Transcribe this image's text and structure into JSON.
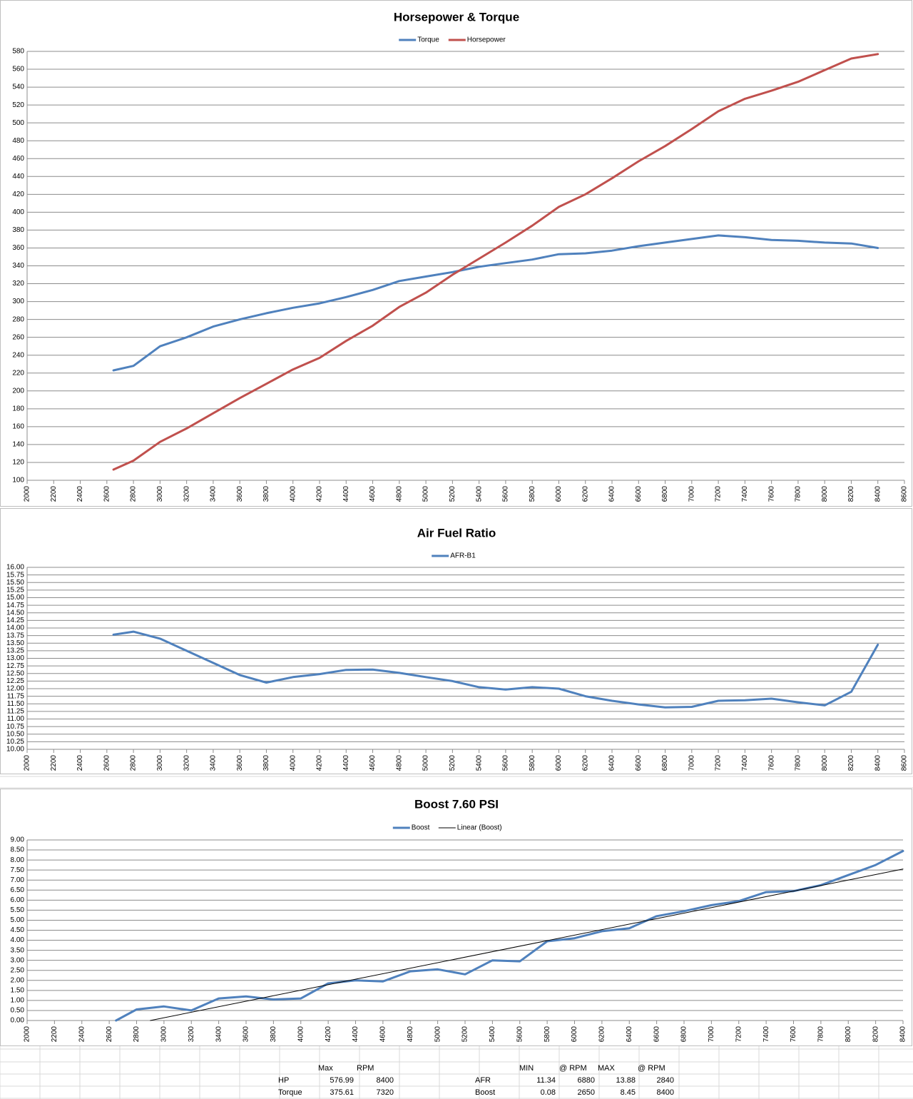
{
  "chart_data": [
    {
      "type": "line",
      "title": "Horsepower & Torque",
      "x": [
        2650,
        2800,
        3000,
        3200,
        3400,
        3600,
        3800,
        4000,
        4200,
        4400,
        4600,
        4800,
        5000,
        5200,
        5400,
        5600,
        5800,
        6000,
        6200,
        6400,
        6600,
        6800,
        7000,
        7200,
        7400,
        7600,
        7800,
        8000,
        8200,
        8400
      ],
      "series": [
        {
          "name": "Torque",
          "color": "#4f81bd",
          "values": [
            223,
            228,
            250,
            260,
            272,
            280,
            287,
            293,
            298,
            305,
            313,
            323,
            328,
            333,
            339,
            343,
            347,
            353,
            354,
            357,
            362,
            366,
            370,
            374,
            372,
            369,
            368,
            366,
            365,
            360
          ]
        },
        {
          "name": "Horsepower",
          "color": "#c0504d",
          "values": [
            112,
            122,
            143,
            158,
            175,
            192,
            208,
            224,
            237,
            256,
            273,
            294,
            310,
            330,
            348,
            366,
            385,
            406,
            420,
            438,
            457,
            474,
            493,
            513,
            527,
            536,
            546,
            559,
            572,
            577
          ]
        }
      ],
      "xlim": [
        2000,
        8600
      ],
      "xticks": [
        2000,
        2200,
        2400,
        2600,
        2800,
        3000,
        3200,
        3400,
        3600,
        3800,
        4000,
        4200,
        4400,
        4600,
        4800,
        5000,
        5200,
        5400,
        5600,
        5800,
        6000,
        6200,
        6400,
        6600,
        6800,
        7000,
        7200,
        7400,
        7600,
        7800,
        8000,
        8200,
        8400,
        8600
      ],
      "ylim": [
        100,
        580
      ],
      "yticks": [
        100,
        120,
        140,
        160,
        180,
        200,
        220,
        240,
        260,
        280,
        300,
        320,
        340,
        360,
        380,
        400,
        420,
        440,
        460,
        480,
        500,
        520,
        540,
        560,
        580
      ],
      "grid": true,
      "legend": "top"
    },
    {
      "type": "line",
      "title": "Air Fuel Ratio",
      "x": [
        2650,
        2800,
        3000,
        3200,
        3400,
        3600,
        3800,
        4000,
        4200,
        4400,
        4600,
        4800,
        5000,
        5200,
        5400,
        5600,
        5800,
        6000,
        6200,
        6400,
        6600,
        6800,
        7000,
        7200,
        7400,
        7600,
        7800,
        8000,
        8200,
        8400
      ],
      "series": [
        {
          "name": "AFR-B1",
          "color": "#4f81bd",
          "values": [
            13.78,
            13.88,
            13.65,
            13.25,
            12.85,
            12.45,
            12.2,
            12.38,
            12.48,
            12.62,
            12.63,
            12.52,
            12.38,
            12.25,
            12.05,
            11.97,
            12.05,
            12.0,
            11.75,
            11.6,
            11.48,
            11.38,
            11.4,
            11.6,
            11.62,
            11.67,
            11.55,
            11.45,
            11.9,
            13.45
          ]
        }
      ],
      "xlim": [
        2000,
        8600
      ],
      "xticks": [
        2000,
        2200,
        2400,
        2600,
        2800,
        3000,
        3200,
        3400,
        3600,
        3800,
        4000,
        4200,
        4400,
        4600,
        4800,
        5000,
        5200,
        5400,
        5600,
        5800,
        6000,
        6200,
        6400,
        6600,
        6800,
        7000,
        7200,
        7400,
        7600,
        7800,
        8000,
        8200,
        8400,
        8600
      ],
      "ylim": [
        10,
        16
      ],
      "yticks": [
        {
          "value": 10,
          "label": "10.00"
        },
        {
          "value": 10.25,
          "label": "10.25"
        },
        {
          "value": 10.5,
          "label": "10.50"
        },
        {
          "value": 10.75,
          "label": "10.75"
        },
        {
          "value": 11,
          "label": "11.00"
        },
        {
          "value": 11.25,
          "label": "11.25"
        },
        {
          "value": 11.5,
          "label": "11.50"
        },
        {
          "value": 11.75,
          "label": "11.75"
        },
        {
          "value": 12,
          "label": "12.00"
        },
        {
          "value": 12.25,
          "label": "12.25"
        },
        {
          "value": 12.5,
          "label": "12.50"
        },
        {
          "value": 12.75,
          "label": "12.75"
        },
        {
          "value": 13,
          "label": "13.00"
        },
        {
          "value": 13.25,
          "label": "13.25"
        },
        {
          "value": 13.5,
          "label": "13.50"
        },
        {
          "value": 13.75,
          "label": "13.75"
        },
        {
          "value": 14,
          "label": "14.00"
        },
        {
          "value": 14.25,
          "label": "14.25"
        },
        {
          "value": 14.5,
          "label": "14.50"
        },
        {
          "value": 14.75,
          "label": "14.75"
        },
        {
          "value": 15,
          "label": "15.00"
        },
        {
          "value": 15.25,
          "label": "15.25"
        },
        {
          "value": 15.5,
          "label": "15.50"
        },
        {
          "value": 15.75,
          "label": "15.75"
        },
        {
          "value": 16,
          "label": "16.00"
        }
      ],
      "grid": true,
      "legend": "top"
    },
    {
      "type": "line",
      "title": "Boost 7.60 PSI",
      "x": [
        2650,
        2800,
        3000,
        3200,
        3400,
        3600,
        3800,
        4000,
        4200,
        4400,
        4600,
        4800,
        5000,
        5200,
        5400,
        5600,
        5800,
        6000,
        6200,
        6400,
        6600,
        6800,
        7000,
        7200,
        7400,
        7600,
        7800,
        8000,
        8200,
        8400
      ],
      "series": [
        {
          "name": "Boost",
          "color": "#4f81bd",
          "values": [
            0.0,
            0.55,
            0.7,
            0.5,
            1.1,
            1.2,
            1.05,
            1.1,
            1.85,
            2.0,
            1.95,
            2.45,
            2.55,
            2.3,
            3.0,
            2.95,
            3.95,
            4.1,
            4.45,
            4.6,
            5.2,
            5.45,
            5.75,
            5.95,
            6.4,
            6.45,
            6.75,
            7.25,
            7.75,
            8.45
          ]
        },
        {
          "name": "Linear (Boost)",
          "color": "#000000",
          "x": [
            2900,
            8400
          ],
          "values": [
            0.0,
            7.55
          ]
        }
      ],
      "xlim": [
        2000,
        8400
      ],
      "xticks": [
        2000,
        2200,
        2400,
        2600,
        2800,
        3000,
        3200,
        3400,
        3600,
        3800,
        4000,
        4200,
        4400,
        4600,
        4800,
        5000,
        5200,
        5400,
        5600,
        5800,
        6000,
        6200,
        6400,
        6600,
        6800,
        7000,
        7200,
        7400,
        7600,
        7800,
        8000,
        8200,
        8400
      ],
      "ylim": [
        0,
        9
      ],
      "yticks": [
        {
          "value": 0,
          "label": "0.00"
        },
        {
          "value": 0.5,
          "label": "0.50"
        },
        {
          "value": 1,
          "label": "1.00"
        },
        {
          "value": 1.5,
          "label": "1.50"
        },
        {
          "value": 2,
          "label": "2.00"
        },
        {
          "value": 2.5,
          "label": "2.50"
        },
        {
          "value": 3,
          "label": "3.00"
        },
        {
          "value": 3.5,
          "label": "3.50"
        },
        {
          "value": 4,
          "label": "4.00"
        },
        {
          "value": 4.5,
          "label": "4.50"
        },
        {
          "value": 5,
          "label": "5.00"
        },
        {
          "value": 5.5,
          "label": "5.50"
        },
        {
          "value": 6,
          "label": "6.00"
        },
        {
          "value": 6.5,
          "label": "6.50"
        },
        {
          "value": 7,
          "label": "7.00"
        },
        {
          "value": 7.5,
          "label": "7.50"
        },
        {
          "value": 8,
          "label": "8.00"
        },
        {
          "value": 8.5,
          "label": "8.50"
        },
        {
          "value": 9,
          "label": "9.00"
        }
      ],
      "grid": true,
      "legend": "top"
    }
  ],
  "table": {
    "left": {
      "header": [
        "Max",
        "RPM"
      ],
      "rows": [
        [
          "HP",
          "576.99",
          "8400"
        ],
        [
          "Torque",
          "375.61",
          "7320"
        ]
      ]
    },
    "right": {
      "header": [
        "MIN",
        "@ RPM",
        "MAX",
        "@ RPM"
      ],
      "rows": [
        [
          "AFR",
          "11.34",
          "6880",
          "13.88",
          "2840"
        ],
        [
          "Boost",
          "0.08",
          "2650",
          "8.45",
          "8400"
        ]
      ]
    }
  }
}
